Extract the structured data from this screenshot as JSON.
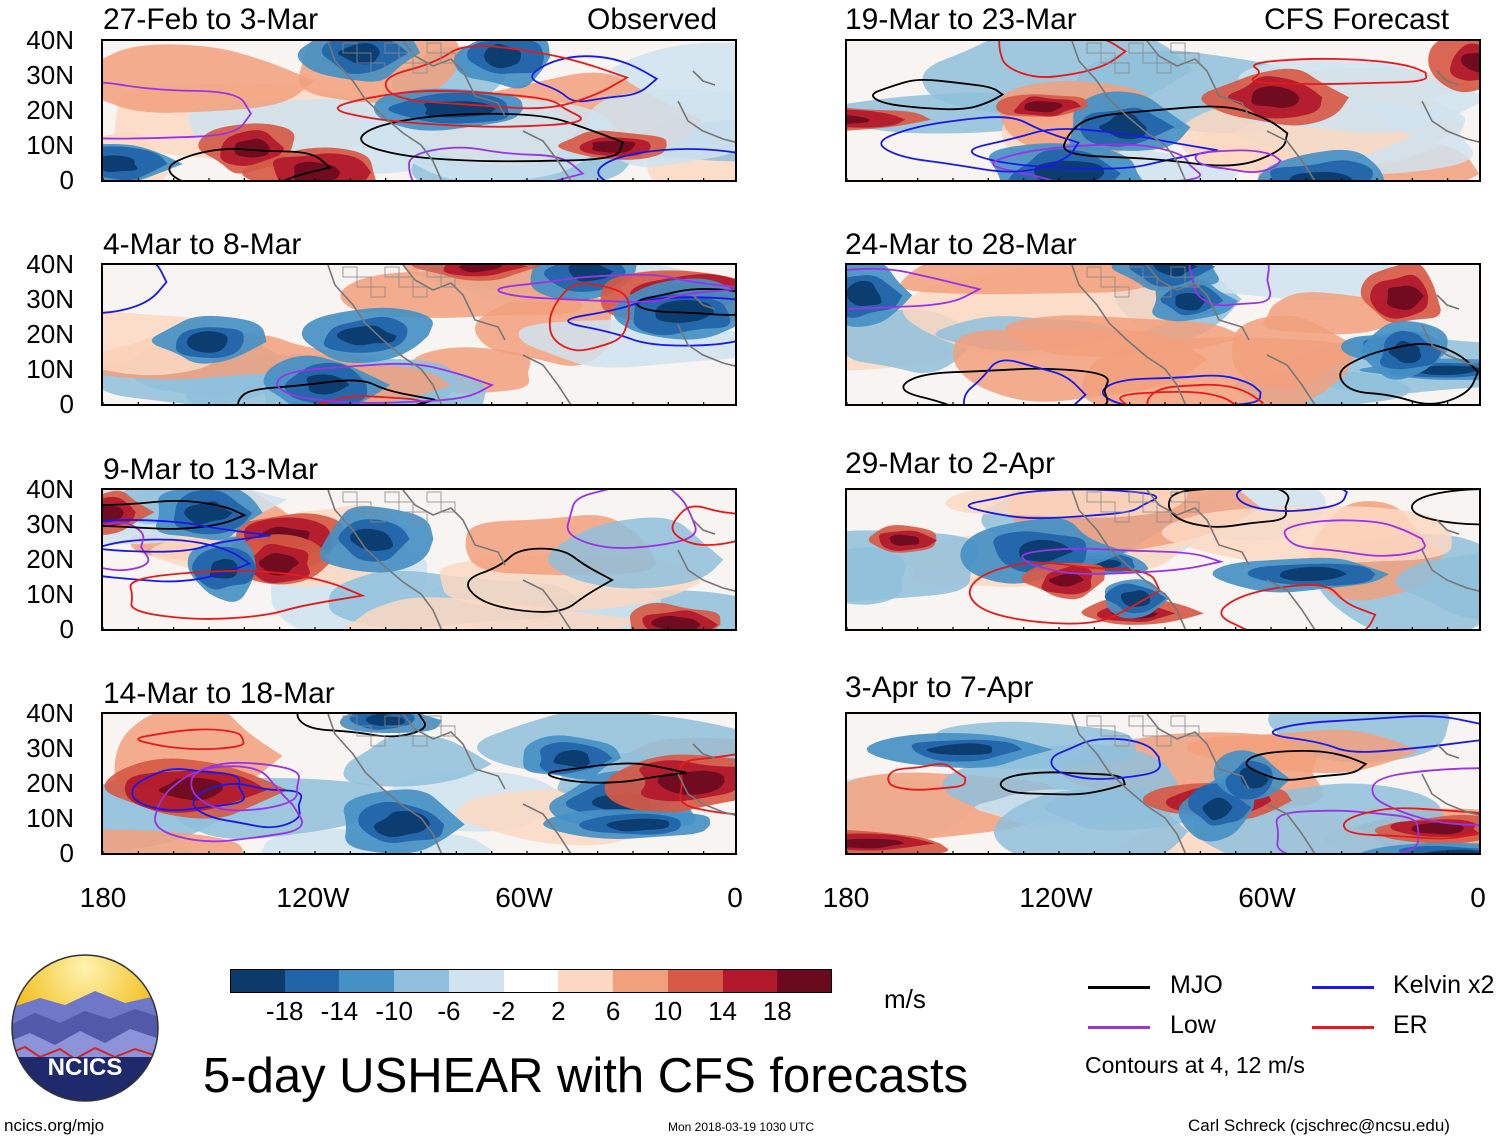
{
  "figure_title": "5-day USHEAR with CFS forecasts",
  "units": "m/s",
  "observed_label": "Observed",
  "forecast_label": "CFS Forecast",
  "panels_left": [
    {
      "title": "27-Feb to 3-Mar"
    },
    {
      "title": "4-Mar to 8-Mar"
    },
    {
      "title": "9-Mar to 13-Mar"
    },
    {
      "title": "14-Mar to 18-Mar"
    }
  ],
  "panels_right": [
    {
      "title": "19-Mar to 23-Mar"
    },
    {
      "title": "24-Mar to 28-Mar"
    },
    {
      "title": "29-Mar to 2-Apr"
    },
    {
      "title": "3-Apr to 7-Apr"
    }
  ],
  "lat_ticks": [
    "40N",
    "30N",
    "20N",
    "10N",
    "0"
  ],
  "lon_ticks": [
    "180",
    "120W",
    "60W",
    "0"
  ],
  "colorbar": {
    "colors": [
      "#0b3a6b",
      "#2164a8",
      "#4590c4",
      "#8fbfdc",
      "#cfe3f0",
      "#ffffff",
      "#fcd8c2",
      "#f2a07c",
      "#d65a46",
      "#b2182b",
      "#6b0a1e"
    ],
    "labels": [
      "-18",
      "-14",
      "-10",
      "-6",
      "-2",
      "2",
      "6",
      "10",
      "14",
      "18"
    ]
  },
  "legend": [
    {
      "label": "MJO",
      "color": "#000000"
    },
    {
      "label": "Kelvin x2",
      "color": "#1a1ae6"
    },
    {
      "label": "Low",
      "color": "#9933e6"
    },
    {
      "label": "ER",
      "color": "#e61a1a"
    }
  ],
  "contour_note": "Contours at 4, 12 m/s",
  "logo_text": "NCICS",
  "footer_left": "ncics.org/mjo",
  "footer_center": "Mon 2018-03-19 1030 UTC",
  "footer_right": "Carl Schreck (cjschrec@ncsu.edu)"
}
